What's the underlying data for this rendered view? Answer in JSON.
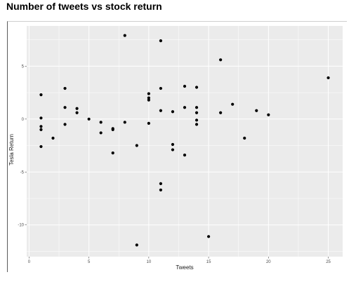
{
  "title": "Number of tweets vs stock return",
  "chart_data": {
    "type": "scatter",
    "title": "",
    "xlabel": "Tweets",
    "ylabel": "Tesla Return",
    "xlim": [
      -0.2,
      26.2
    ],
    "ylim": [
      -13.0,
      8.8
    ],
    "x_ticks": [
      0,
      5,
      10,
      15,
      20,
      25
    ],
    "y_ticks": [
      5,
      0,
      -5,
      -10
    ],
    "x_tick_labels": [
      "0",
      "5",
      "10",
      "15",
      "20",
      "25"
    ],
    "y_tick_labels": [
      "5",
      "0",
      "-5",
      "-10"
    ],
    "grid": true,
    "legend": "none",
    "point_color": "#000000",
    "panel_color": "#ebebeb",
    "grid_color": "#ffffff",
    "points": [
      {
        "x": 1,
        "y": 2.3
      },
      {
        "x": 1,
        "y": 0.1
      },
      {
        "x": 1,
        "y": -0.7
      },
      {
        "x": 1,
        "y": -1.0
      },
      {
        "x": 1,
        "y": -2.6
      },
      {
        "x": 2,
        "y": -1.8
      },
      {
        "x": 3,
        "y": 2.9
      },
      {
        "x": 3,
        "y": 1.1
      },
      {
        "x": 3,
        "y": -0.5
      },
      {
        "x": 4,
        "y": 1.0
      },
      {
        "x": 4,
        "y": 0.6
      },
      {
        "x": 5,
        "y": 0.0
      },
      {
        "x": 6,
        "y": -0.3
      },
      {
        "x": 6,
        "y": -1.3
      },
      {
        "x": 7,
        "y": -0.9
      },
      {
        "x": 7,
        "y": -1.0
      },
      {
        "x": 7,
        "y": -3.2
      },
      {
        "x": 8,
        "y": 7.9
      },
      {
        "x": 8,
        "y": -0.3
      },
      {
        "x": 9,
        "y": -2.5
      },
      {
        "x": 9,
        "y": -11.9
      },
      {
        "x": 10,
        "y": 2.4
      },
      {
        "x": 10,
        "y": 2.0
      },
      {
        "x": 10,
        "y": 1.8
      },
      {
        "x": 10,
        "y": -0.4
      },
      {
        "x": 11,
        "y": 7.4
      },
      {
        "x": 11,
        "y": 2.9
      },
      {
        "x": 11,
        "y": 0.8
      },
      {
        "x": 11,
        "y": -6.1
      },
      {
        "x": 11,
        "y": -6.7
      },
      {
        "x": 12,
        "y": 0.7
      },
      {
        "x": 12,
        "y": -2.4
      },
      {
        "x": 12,
        "y": -2.9
      },
      {
        "x": 13,
        "y": 3.1
      },
      {
        "x": 13,
        "y": 1.1
      },
      {
        "x": 13,
        "y": -3.4
      },
      {
        "x": 14,
        "y": 3.0
      },
      {
        "x": 14,
        "y": 1.1
      },
      {
        "x": 14,
        "y": 0.6
      },
      {
        "x": 14,
        "y": -0.1
      },
      {
        "x": 14,
        "y": -0.5
      },
      {
        "x": 15,
        "y": -11.1
      },
      {
        "x": 16,
        "y": 5.6
      },
      {
        "x": 16,
        "y": 0.6
      },
      {
        "x": 17,
        "y": 1.4
      },
      {
        "x": 18,
        "y": -1.8
      },
      {
        "x": 19,
        "y": 0.8
      },
      {
        "x": 20,
        "y": 0.4
      },
      {
        "x": 25,
        "y": 3.9
      }
    ]
  }
}
